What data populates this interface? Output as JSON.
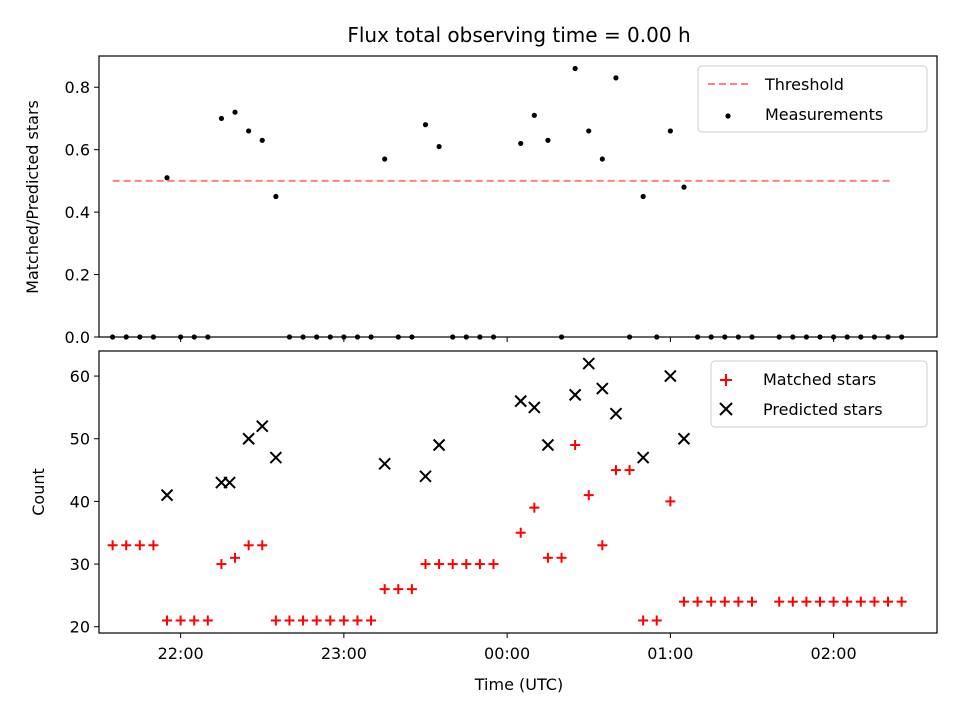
{
  "chart_data": [
    {
      "type": "scatter",
      "title": "Flux total observing time = 0.00 h",
      "ylabel": "Matched/Predicted stars",
      "xlabel": "",
      "ylim": [
        0,
        0.9
      ],
      "yticks": [
        0.0,
        0.2,
        0.4,
        0.6,
        0.8
      ],
      "ytick_labels": [
        "0.0",
        "0.2",
        "0.4",
        "0.6",
        "0.8"
      ],
      "legend": {
        "placement": "top-right",
        "entries": [
          "Threshold",
          "Measurements"
        ]
      },
      "threshold": {
        "name": "Threshold",
        "value": 0.5,
        "x_start": "21:35",
        "x_end": "02:22",
        "color": "#ff8080"
      },
      "series": [
        {
          "name": "Measurements",
          "marker": "dot",
          "color": "#000000",
          "points": [
            [
              "21:35",
              0
            ],
            [
              "21:40",
              0
            ],
            [
              "21:45",
              0
            ],
            [
              "21:50",
              0
            ],
            [
              "21:55",
              0.51
            ],
            [
              "22:00",
              0
            ],
            [
              "22:05",
              0
            ],
            [
              "22:10",
              0
            ],
            [
              "22:15",
              0.7
            ],
            [
              "22:20",
              0.72
            ],
            [
              "22:25",
              0.66
            ],
            [
              "22:30",
              0.63
            ],
            [
              "22:35",
              0.45
            ],
            [
              "22:40",
              0
            ],
            [
              "22:45",
              0
            ],
            [
              "22:50",
              0
            ],
            [
              "22:55",
              0
            ],
            [
              "23:00",
              0
            ],
            [
              "23:05",
              0
            ],
            [
              "23:10",
              0
            ],
            [
              "23:15",
              0.57
            ],
            [
              "23:20",
              0
            ],
            [
              "23:25",
              0
            ],
            [
              "23:30",
              0.68
            ],
            [
              "23:35",
              0.61
            ],
            [
              "23:40",
              0
            ],
            [
              "23:45",
              0
            ],
            [
              "23:50",
              0
            ],
            [
              "23:55",
              0
            ],
            [
              "00:05",
              0.62
            ],
            [
              "00:10",
              0.71
            ],
            [
              "00:15",
              0.63
            ],
            [
              "00:20",
              0
            ],
            [
              "00:25",
              0.86
            ],
            [
              "00:30",
              0.66
            ],
            [
              "00:35",
              0.57
            ],
            [
              "00:40",
              0.83
            ],
            [
              "00:45",
              0
            ],
            [
              "00:50",
              0.45
            ],
            [
              "00:55",
              0
            ],
            [
              "01:00",
              0.66
            ],
            [
              "01:05",
              0.48
            ],
            [
              "01:10",
              0
            ],
            [
              "01:15",
              0
            ],
            [
              "01:20",
              0
            ],
            [
              "01:25",
              0
            ],
            [
              "01:30",
              0
            ],
            [
              "01:40",
              0
            ],
            [
              "01:45",
              0
            ],
            [
              "01:50",
              0
            ],
            [
              "01:55",
              0
            ],
            [
              "02:00",
              0
            ],
            [
              "02:05",
              0
            ],
            [
              "02:10",
              0
            ],
            [
              "02:15",
              0
            ],
            [
              "02:20",
              0
            ],
            [
              "02:25",
              0
            ]
          ]
        }
      ]
    },
    {
      "type": "scatter",
      "title": "",
      "xlabel": "Time (UTC)",
      "ylabel": "Count",
      "ylim": [
        19,
        64
      ],
      "yticks": [
        20,
        30,
        40,
        50,
        60
      ],
      "ytick_labels": [
        "20",
        "30",
        "40",
        "50",
        "60"
      ],
      "xticks": [
        "22:00",
        "23:00",
        "00:00",
        "01:00",
        "02:00"
      ],
      "legend": {
        "placement": "top-right",
        "entries": [
          "Matched stars",
          "Predicted stars"
        ]
      },
      "series": [
        {
          "name": "Matched stars",
          "marker": "plus",
          "color": "#ff0000",
          "points": [
            [
              "21:35",
              33
            ],
            [
              "21:40",
              33
            ],
            [
              "21:45",
              33
            ],
            [
              "21:50",
              33
            ],
            [
              "21:55",
              21
            ],
            [
              "22:00",
              21
            ],
            [
              "22:05",
              21
            ],
            [
              "22:10",
              21
            ],
            [
              "22:15",
              30
            ],
            [
              "22:20",
              31
            ],
            [
              "22:25",
              33
            ],
            [
              "22:30",
              33
            ],
            [
              "22:35",
              21
            ],
            [
              "22:40",
              21
            ],
            [
              "22:45",
              21
            ],
            [
              "22:50",
              21
            ],
            [
              "22:55",
              21
            ],
            [
              "23:00",
              21
            ],
            [
              "23:05",
              21
            ],
            [
              "23:10",
              21
            ],
            [
              "23:15",
              26
            ],
            [
              "23:20",
              26
            ],
            [
              "23:25",
              26
            ],
            [
              "23:30",
              30
            ],
            [
              "23:35",
              30
            ],
            [
              "23:40",
              30
            ],
            [
              "23:45",
              30
            ],
            [
              "23:50",
              30
            ],
            [
              "23:55",
              30
            ],
            [
              "00:05",
              35
            ],
            [
              "00:10",
              39
            ],
            [
              "00:15",
              31
            ],
            [
              "00:20",
              31
            ],
            [
              "00:25",
              49
            ],
            [
              "00:30",
              41
            ],
            [
              "00:35",
              33
            ],
            [
              "00:40",
              45
            ],
            [
              "00:45",
              45
            ],
            [
              "00:50",
              21
            ],
            [
              "00:55",
              21
            ],
            [
              "01:00",
              40
            ],
            [
              "01:05",
              24
            ],
            [
              "01:10",
              24
            ],
            [
              "01:15",
              24
            ],
            [
              "01:20",
              24
            ],
            [
              "01:25",
              24
            ],
            [
              "01:30",
              24
            ],
            [
              "01:40",
              24
            ],
            [
              "01:45",
              24
            ],
            [
              "01:50",
              24
            ],
            [
              "01:55",
              24
            ],
            [
              "02:00",
              24
            ],
            [
              "02:05",
              24
            ],
            [
              "02:10",
              24
            ],
            [
              "02:15",
              24
            ],
            [
              "02:20",
              24
            ],
            [
              "02:25",
              24
            ]
          ]
        },
        {
          "name": "Predicted stars",
          "marker": "x",
          "color": "#000000",
          "points": [
            [
              "21:55",
              41
            ],
            [
              "22:15",
              43
            ],
            [
              "22:18",
              43
            ],
            [
              "22:25",
              50
            ],
            [
              "22:30",
              52
            ],
            [
              "22:35",
              47
            ],
            [
              "23:15",
              46
            ],
            [
              "23:30",
              44
            ],
            [
              "23:35",
              49
            ],
            [
              "00:05",
              56
            ],
            [
              "00:10",
              55
            ],
            [
              "00:15",
              49
            ],
            [
              "00:25",
              57
            ],
            [
              "00:30",
              62
            ],
            [
              "00:35",
              58
            ],
            [
              "00:40",
              54
            ],
            [
              "00:50",
              47
            ],
            [
              "01:00",
              60
            ],
            [
              "01:05",
              50
            ]
          ]
        }
      ]
    }
  ]
}
